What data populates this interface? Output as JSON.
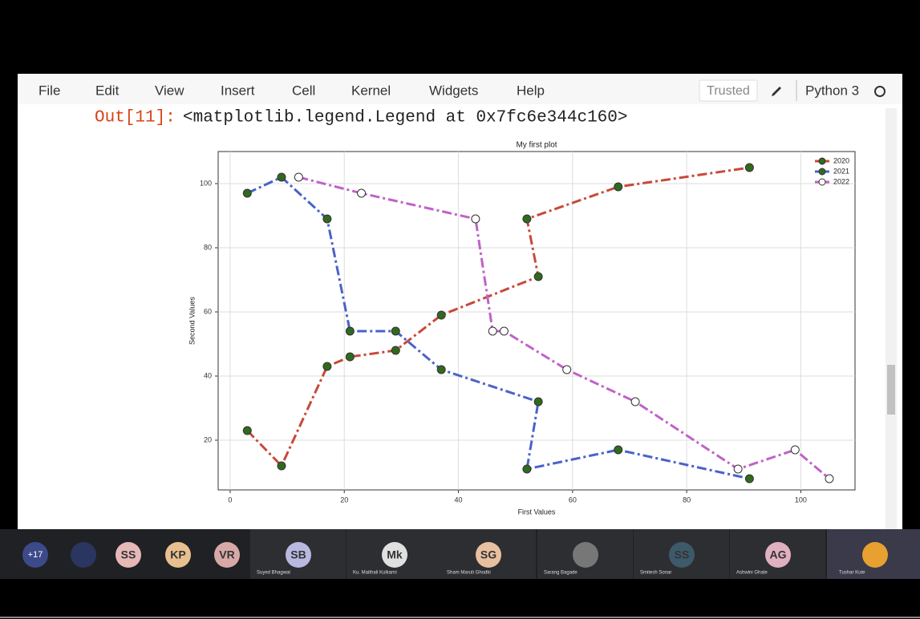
{
  "menu": [
    "File",
    "Edit",
    "View",
    "Insert",
    "Cell",
    "Kernel",
    "Widgets",
    "Help"
  ],
  "trusted": "Trusted",
  "kernel": "Python 3",
  "output": {
    "prompt": "Out[11]:",
    "text": "<matplotlib.legend.Legend at 0x7fc6e344c160>"
  },
  "chart_data": {
    "type": "line",
    "title": "My first plot",
    "x_label": "First Values",
    "y_label": "Second Values",
    "xlim": [
      -2.1,
      109.5
    ],
    "ylim": [
      4.5,
      110
    ],
    "xticks": [
      0,
      20,
      40,
      60,
      80,
      100
    ],
    "yticks": [
      20,
      40,
      60,
      80,
      100
    ],
    "grid": true,
    "legend": "upper right",
    "line_style": "dashdot",
    "series": [
      {
        "name": "2020",
        "color": "#c8493b",
        "marker_color": "#2f6a1e",
        "x": [
          3,
          9,
          17,
          21,
          29,
          37,
          54,
          52,
          68,
          91
        ],
        "values": [
          23,
          12,
          43,
          46,
          48,
          59,
          71,
          89,
          99,
          105
        ]
      },
      {
        "name": "2021",
        "color": "#4a62c8",
        "marker_color": "#2f6a1e",
        "x": [
          3,
          9,
          17,
          21,
          29,
          37,
          54,
          52,
          68,
          91
        ],
        "values": [
          97,
          102,
          89,
          54,
          54,
          42,
          32,
          11,
          17,
          8
        ]
      },
      {
        "name": "2022",
        "color": "#c062c8",
        "marker_color": "#ffffff",
        "x": [
          12,
          23,
          43,
          46,
          48,
          59,
          71,
          89,
          99,
          105
        ],
        "values": [
          102,
          97,
          89,
          54,
          54,
          42,
          32,
          11,
          17,
          8
        ]
      }
    ]
  },
  "participants": {
    "more": "+17",
    "people": [
      {
        "initials": "SS"
      },
      {
        "initials": "KP"
      },
      {
        "initials": "VR"
      },
      {
        "initials": "SB",
        "name": "Suyed Bhagwat"
      },
      {
        "initials": "Mk",
        "name": "Ku. Maithali Kulkarni"
      },
      {
        "initials": "SG",
        "name": "Sham Maruti Ghodki"
      },
      {
        "name": "Sarang Bagade"
      },
      {
        "initials": "SS",
        "name": "Smitesh Sonar"
      },
      {
        "initials": "AG",
        "name": "Ashwini Ghate"
      },
      {
        "name": "Tushar Kute"
      }
    ]
  }
}
